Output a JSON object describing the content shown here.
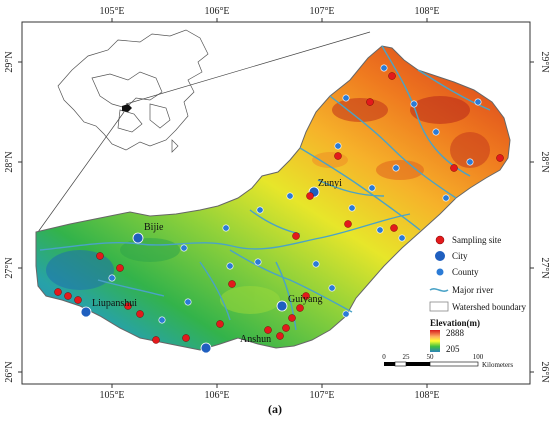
{
  "axes": {
    "top": [
      "105°E",
      "106°E",
      "107°E",
      "108°E"
    ],
    "bottom": [
      "105°E",
      "106°E",
      "107°E",
      "108°E"
    ],
    "left": [
      "29°N",
      "28°N",
      "27°N",
      "26°N"
    ],
    "right": [
      "29°N",
      "28°N",
      "27°N",
      "26°N"
    ]
  },
  "cities": {
    "zunyi": "Zunyi",
    "bijie": "Bijie",
    "liupanshui": "Liupanshui",
    "guiyang": "Guiyang",
    "anshun": "Anshun"
  },
  "legend": {
    "sampling": "Sampling site",
    "city": "City",
    "county": "County",
    "river": "Major river",
    "boundary": "Watershed boundary",
    "elevation_title": "Elevation(m)",
    "elevation_max": "2888",
    "elevation_min": "205"
  },
  "scale": {
    "ticks": [
      "0",
      "25",
      "50",
      "100"
    ],
    "unit": "Kilometers"
  },
  "caption": "(a)",
  "colors": {
    "sampling": "#e31a1c",
    "city": "#1f5fbf",
    "county": "#2b7bd6",
    "river": "#4aa3c7",
    "elev_high": "#d7191c",
    "elev_mid": "#ffff33",
    "elev_low": "#1a9641",
    "elev_lowest": "#2b83ba"
  }
}
